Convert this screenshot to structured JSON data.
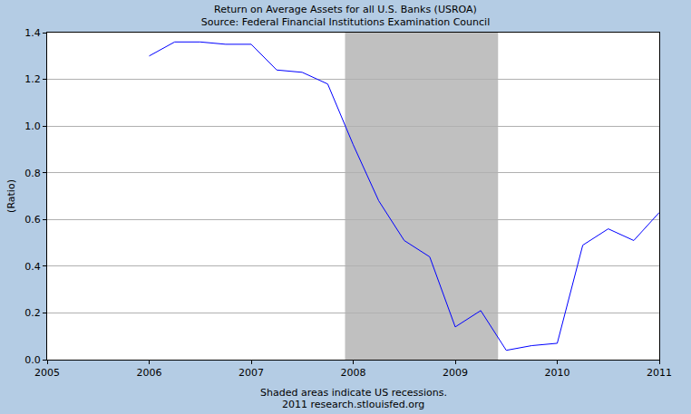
{
  "chart_data": {
    "type": "line",
    "title": "Return on Average Assets for all U.S. Banks (USROA)",
    "subtitle": "Source: Federal Financial Institutions Examination Council",
    "y_label": "(Ratio)",
    "x": [
      2006.0,
      2006.25,
      2006.5,
      2006.75,
      2007.0,
      2007.25,
      2007.5,
      2007.75,
      2008.0,
      2008.25,
      2008.5,
      2008.75,
      2009.0,
      2009.25,
      2009.5,
      2009.75,
      2010.0,
      2010.25,
      2010.5,
      2010.75,
      2011.0
    ],
    "values": [
      1.3,
      1.36,
      1.36,
      1.35,
      1.35,
      1.24,
      1.23,
      1.18,
      0.92,
      0.68,
      0.51,
      0.44,
      0.14,
      0.21,
      0.04,
      0.06,
      0.07,
      0.49,
      0.56,
      0.51,
      0.63
    ],
    "color": "#0000ff",
    "xlim": [
      2005,
      2011
    ],
    "xticks": [
      2005,
      2006,
      2007,
      2008,
      2009,
      2010,
      2011
    ],
    "ylim": [
      0,
      1.4
    ],
    "yticks": [
      {
        "value": 0,
        "label": "0.0"
      },
      0.2,
      0.4,
      0.6,
      0.8,
      {
        "value": 1,
        "label": "1.0"
      },
      1.2,
      1.4
    ],
    "grid": true,
    "recessions": [
      {
        "start": 2007.92,
        "end": 2009.42
      }
    ],
    "notes": [
      "Shaded areas indicate US recessions.",
      "2011 research.stlouisfed.org"
    ]
  }
}
